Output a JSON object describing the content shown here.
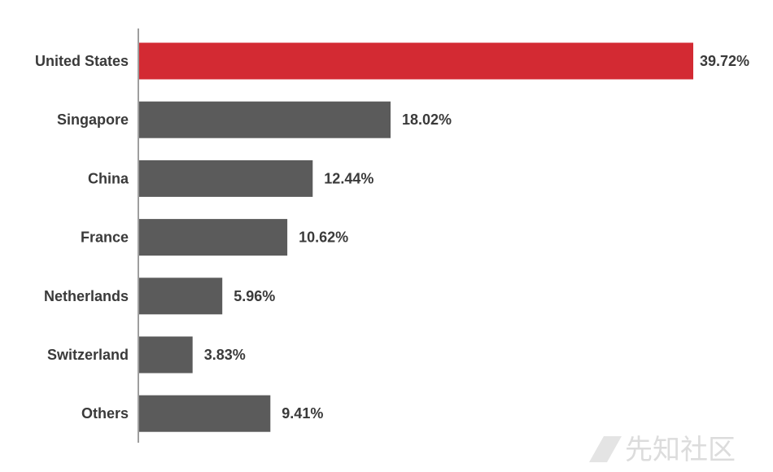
{
  "chart_data": {
    "type": "bar",
    "orientation": "horizontal",
    "categories": [
      "United States",
      "Singapore",
      "China",
      "France",
      "Netherlands",
      "Switzerland",
      "Others"
    ],
    "values": [
      39.72,
      18.02,
      12.44,
      10.62,
      5.96,
      3.83,
      9.41
    ],
    "value_labels": [
      "39.72%",
      "18.02%",
      "12.44%",
      "10.62%",
      "5.96%",
      "3.83%",
      "9.41%"
    ],
    "unit": "%",
    "xlim": [
      0,
      39.72
    ],
    "highlight_index": 0,
    "colors": {
      "highlight": "#d32a33",
      "default": "#5b5b5b",
      "axis": "#9e9e9e",
      "text": "#3a3a3a"
    },
    "grid": false,
    "legend": "none"
  },
  "watermark": {
    "text": "先知社区"
  }
}
